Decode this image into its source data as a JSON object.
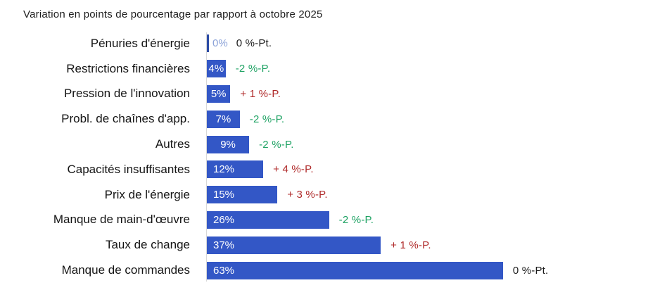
{
  "title": "Variation en points de pourcentage par rapport à octobre 2025",
  "chart_data": {
    "type": "bar",
    "orientation": "horizontal",
    "title": "Variation en points de pourcentage par rapport à octobre 2025",
    "unit": "%",
    "xlim": [
      0,
      70
    ],
    "grid": false,
    "legend": false,
    "categories": [
      "Pénuries d'énergie",
      "Restrictions financières",
      "Pression de l'innovation",
      "Probl. de chaînes d'app.",
      "Autres",
      "Capacités insuffisantes",
      "Prix de l'énergie",
      "Manque de main-d'œuvre",
      "Taux de change",
      "Manque de commandes"
    ],
    "values": [
      0,
      4,
      5,
      7,
      9,
      12,
      15,
      26,
      37,
      63
    ],
    "value_labels": [
      "0%",
      "4%",
      "5%",
      "7%",
      "9%",
      "12%",
      "15%",
      "26%",
      "37%",
      "63%"
    ],
    "deltas": [
      "0 %-Pt.",
      "-2 %-P.",
      "+ 1 %-P.",
      "-2 %-P.",
      "-2 %-P.",
      "+ 4 %-P.",
      "+ 3 %-P.",
      "-2 %-P.",
      "+ 1 %-P.",
      "0 %-Pt."
    ],
    "delta_color_keys": [
      "neutral",
      "negative",
      "positive",
      "negative",
      "negative",
      "positive",
      "positive",
      "negative",
      "positive",
      "neutral"
    ],
    "colors": {
      "bar": "#3357c6",
      "bar_zero": "#2c4ca6",
      "outside_value_text": "#8ba2d8",
      "positive_delta_text": "#b02b2b",
      "negative_delta_text": "#1ea263",
      "neutral_delta_text": "#1a1a1a",
      "axis_line": "#d8d8d8",
      "category_text": "#141414",
      "title_text": "#1c1c1c"
    }
  }
}
